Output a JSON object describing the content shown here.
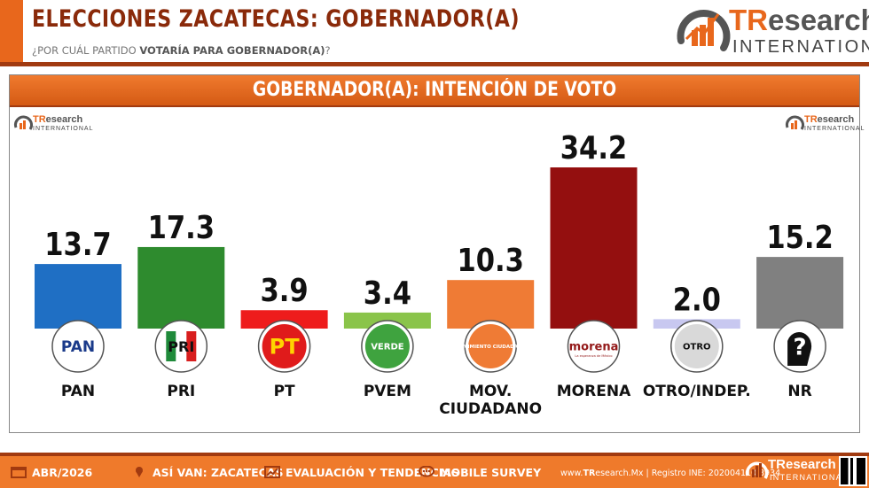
{
  "header": {
    "title": "ELECCIONES ZACATECAS: GOBERNADOR(A)",
    "subtitle_lead": "¿POR CUÁL PARTIDO ",
    "subtitle_bold": "VOTARÍA PARA GOBERNADOR(A)",
    "subtitle_tail": "?",
    "logo_research": "TResearch",
    "logo_international": "INTERNATIONAL"
  },
  "panel": {
    "title": "GOBERNADOR(A): INTENCIÓN DE VOTO",
    "mini_logo_main": "TResearch",
    "mini_logo_sub": "INTERNATIONAL"
  },
  "chart_data": {
    "type": "bar",
    "title": "GOBERNADOR(A): INTENCIÓN DE VOTO",
    "categories": [
      "PAN",
      "PRI",
      "PT",
      "PVEM",
      "MOV. CIUDADANO",
      "MORENA",
      "OTRO/INDEP.",
      "NR"
    ],
    "category_lines": [
      [
        "PAN"
      ],
      [
        "PRI"
      ],
      [
        "PT"
      ],
      [
        "PVEM"
      ],
      [
        "MOV.",
        "CIUDADANO"
      ],
      [
        "MORENA"
      ],
      [
        "OTRO/INDEP."
      ],
      [
        "NR"
      ]
    ],
    "values": [
      13.7,
      17.3,
      3.9,
      3.4,
      10.3,
      34.2,
      2.0,
      15.2
    ],
    "value_labels": [
      "13.7",
      "17.3",
      "3.9",
      "3.4",
      "10.3",
      "34.2",
      "2.0",
      "15.2"
    ],
    "colors": [
      "#1f6fc4",
      "#2e8b2e",
      "#ee1c1c",
      "#8ac44a",
      "#ef7b35",
      "#940f0f",
      "#c8c8f0",
      "#808080"
    ],
    "ylim": [
      0,
      34.2
    ],
    "grid": false,
    "legend": "none",
    "badges": [
      {
        "text": "PAN",
        "icon": "pan-logo-icon"
      },
      {
        "text": "PRI",
        "icon": "pri-logo-icon"
      },
      {
        "text": "PT",
        "icon": "pt-logo-icon"
      },
      {
        "text": "VERDE",
        "icon": "pvem-logo-icon"
      },
      {
        "text": "MOVIMIENTO CIUDADANO",
        "icon": "mc-logo-icon"
      },
      {
        "text": "morena",
        "sub": "La esperanza de México",
        "icon": "morena-logo-icon"
      },
      {
        "text": "OTRO",
        "icon": "otro-logo-icon"
      },
      {
        "text": "?",
        "icon": "question-head-icon"
      }
    ]
  },
  "footer": {
    "date": "ABR/2026",
    "item2": "ASÍ VAN: ZACATECAS",
    "item3": "EVALUACIÓN Y TENDENCIAS",
    "item4": "MOBILE SURVEY",
    "site_pre": "www.",
    "site_bold": "TR",
    "site_post": "esearch.Mx",
    "registro": " | Registro INE: 202004110I8934",
    "logo_research": "TResearch",
    "logo_international": "INTERNATIONAL"
  }
}
